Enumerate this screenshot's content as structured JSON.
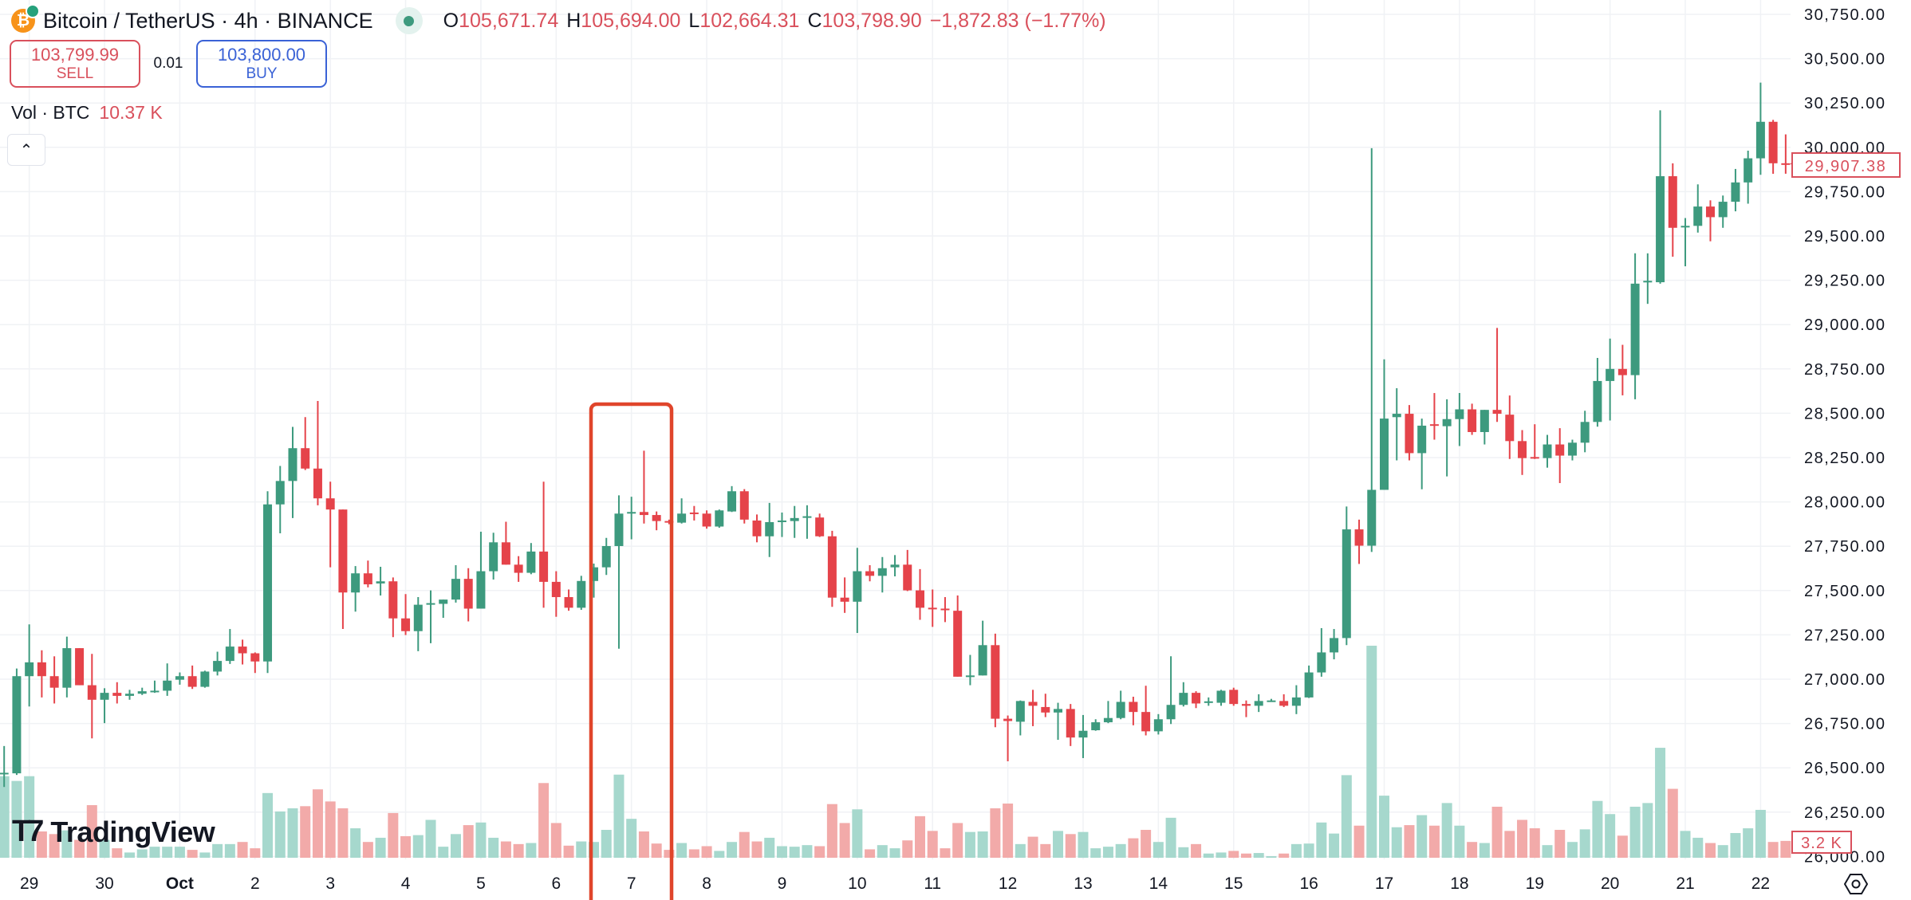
{
  "header": {
    "symbol_title": "Bitcoin / TetherUS · 4h · BINANCE",
    "icon": "bitcoin-icon",
    "status": "market-open-dot",
    "ohlc": {
      "o_label": "O",
      "o_value": "105,671.74",
      "h_label": "H",
      "h_value": "105,694.00",
      "l_label": "L",
      "l_value": "102,664.31",
      "c_label": "C",
      "c_value": "103,798.90",
      "change": "−1,872.83 (−1.77%)"
    }
  },
  "trade": {
    "sell_price": "103,799.99",
    "sell_label": "SELL",
    "quantity": "0.01",
    "buy_price": "103,800.00",
    "buy_label": "BUY"
  },
  "volume_legend": {
    "label": "Vol · BTC",
    "value": "10.37 K"
  },
  "collapse_icon": "chevron-up-icon",
  "logo_text": "TradingView",
  "colors": {
    "up": "#3d9a7e",
    "down": "#e5434a",
    "vol_up": "#a6d8cd",
    "vol_down": "#f2aaa9",
    "highlight": "#e0452b",
    "last_price": "#d9505c"
  },
  "chart_data": {
    "type": "candlestick",
    "interval": "4h",
    "ylim": [
      26000,
      30750
    ],
    "grid": true,
    "y_ticks": [
      "30,750.00",
      "30,500.00",
      "30,250.00",
      "30,000.00",
      "29,750.00",
      "29,500.00",
      "29,250.00",
      "29,000.00",
      "28,750.00",
      "28,500.00",
      "28,250.00",
      "28,000.00",
      "27,750.00",
      "27,500.00",
      "27,250.00",
      "27,000.00",
      "26,750.00",
      "26,500.00",
      "26,250.00",
      "26,000.00"
    ],
    "y_tick_values": [
      30750,
      30500,
      30250,
      30000,
      29750,
      29500,
      29250,
      29000,
      28750,
      28500,
      28250,
      28000,
      27750,
      27500,
      27250,
      27000,
      26750,
      26500,
      26250,
      26000
    ],
    "x_ticks": [
      {
        "label": "29",
        "bar": 2
      },
      {
        "label": "30",
        "bar": 8
      },
      {
        "label": "Oct",
        "bar": 14
      },
      {
        "label": "2",
        "bar": 20
      },
      {
        "label": "3",
        "bar": 26
      },
      {
        "label": "4",
        "bar": 32
      },
      {
        "label": "5",
        "bar": 38
      },
      {
        "label": "6",
        "bar": 44
      },
      {
        "label": "7",
        "bar": 50
      },
      {
        "label": "8",
        "bar": 56
      },
      {
        "label": "9",
        "bar": 62
      },
      {
        "label": "10",
        "bar": 68
      },
      {
        "label": "11",
        "bar": 74
      },
      {
        "label": "12",
        "bar": 80
      },
      {
        "label": "13",
        "bar": 86
      },
      {
        "label": "14",
        "bar": 92
      },
      {
        "label": "15",
        "bar": 98
      },
      {
        "label": "16",
        "bar": 104
      },
      {
        "label": "17",
        "bar": 110
      },
      {
        "label": "18",
        "bar": 116
      },
      {
        "label": "19",
        "bar": 122
      },
      {
        "label": "20",
        "bar": 128
      },
      {
        "label": "21",
        "bar": 134
      },
      {
        "label": "22",
        "bar": 140
      }
    ],
    "highlighted_period": "7",
    "last_price_label": "29,907.38",
    "last_volume_label": "3.2 K",
    "ohlc_fields": [
      "open",
      "high",
      "low",
      "close"
    ],
    "candles": [
      [
        26466,
        26623,
        26392,
        26472
      ],
      [
        26469,
        27060,
        26460,
        27017
      ],
      [
        27017,
        27309,
        26846,
        27095
      ],
      [
        27095,
        27163,
        26897,
        27017
      ],
      [
        27017,
        27129,
        26863,
        26952
      ],
      [
        26952,
        27240,
        26897,
        27175
      ],
      [
        27175,
        27175,
        26966,
        26966
      ],
      [
        26966,
        27143,
        26666,
        26884
      ],
      [
        26884,
        26949,
        26752,
        26923
      ],
      [
        26923,
        26983,
        26863,
        26906
      ],
      [
        26906,
        26940,
        26884,
        26918
      ],
      [
        26918,
        26952,
        26911,
        26932
      ],
      [
        26932,
        26992,
        26923,
        26935
      ],
      [
        26935,
        27089,
        26906,
        26992
      ],
      [
        26997,
        27038,
        26969,
        27017
      ],
      [
        27017,
        27077,
        26945,
        26957
      ],
      [
        26957,
        27048,
        26952,
        27043
      ],
      [
        27043,
        27155,
        27021,
        27103
      ],
      [
        27103,
        27283,
        27086,
        27184
      ],
      [
        27184,
        27223,
        27083,
        27146
      ],
      [
        27146,
        27151,
        27035,
        27100
      ],
      [
        27100,
        28060,
        27035,
        27986
      ],
      [
        27986,
        28203,
        27823,
        28118
      ],
      [
        28118,
        28423,
        27909,
        28303
      ],
      [
        28303,
        28478,
        28180,
        28188
      ],
      [
        28188,
        28569,
        27981,
        28020
      ],
      [
        28020,
        28114,
        27631,
        27957
      ],
      [
        27957,
        27957,
        27283,
        27489
      ],
      [
        27489,
        27638,
        27381,
        27597
      ],
      [
        27597,
        27669,
        27518,
        27535
      ],
      [
        27540,
        27634,
        27472,
        27552
      ],
      [
        27552,
        27574,
        27237,
        27343
      ],
      [
        27343,
        27480,
        27249,
        27271
      ],
      [
        27271,
        27463,
        27158,
        27420
      ],
      [
        27425,
        27501,
        27203,
        27429
      ],
      [
        27425,
        27449,
        27346,
        27449
      ],
      [
        27449,
        27643,
        27432,
        27566
      ],
      [
        27566,
        27626,
        27326,
        27398
      ],
      [
        27398,
        27832,
        27398,
        27609
      ],
      [
        27609,
        27826,
        27562,
        27772
      ],
      [
        27772,
        27888,
        27646,
        27646
      ],
      [
        27646,
        27694,
        27549,
        27600
      ],
      [
        27600,
        27768,
        27592,
        27720
      ],
      [
        27720,
        28114,
        27403,
        27549
      ],
      [
        27549,
        27609,
        27352,
        27463
      ],
      [
        27463,
        27506,
        27386,
        27403
      ],
      [
        27403,
        27583,
        27391,
        27554
      ],
      [
        27554,
        27652,
        27460,
        27631
      ],
      [
        27631,
        27797,
        27588,
        27751
      ],
      [
        27751,
        28037,
        27172,
        27934
      ],
      [
        27938,
        28029,
        27789,
        27943
      ],
      [
        27943,
        28289,
        27878,
        27926
      ],
      [
        27926,
        27946,
        27840,
        27892
      ],
      [
        27892,
        27900,
        27874,
        27886
      ],
      [
        27883,
        28020,
        27878,
        27934
      ],
      [
        27940,
        27977,
        27895,
        27934
      ],
      [
        27934,
        27952,
        27849,
        27861
      ],
      [
        27861,
        27957,
        27854,
        27952
      ],
      [
        27946,
        28089,
        27943,
        28060
      ],
      [
        28060,
        28072,
        27878,
        27900
      ],
      [
        27895,
        27929,
        27772,
        27806
      ],
      [
        27806,
        27994,
        27689,
        27886
      ],
      [
        27888,
        27940,
        27802,
        27895
      ],
      [
        27892,
        27977,
        27797,
        27909
      ],
      [
        27916,
        27981,
        27792,
        27919
      ],
      [
        27912,
        27934,
        27802,
        27806
      ],
      [
        27806,
        27837,
        27408,
        27460
      ],
      [
        27460,
        27574,
        27374,
        27437
      ],
      [
        27437,
        27741,
        27261,
        27609
      ],
      [
        27609,
        27643,
        27552,
        27583
      ],
      [
        27583,
        27689,
        27489,
        27626
      ],
      [
        27631,
        27700,
        27580,
        27646
      ],
      [
        27646,
        27729,
        27497,
        27501
      ],
      [
        27501,
        27621,
        27335,
        27403
      ],
      [
        27403,
        27506,
        27295,
        27398
      ],
      [
        27398,
        27463,
        27322,
        27395
      ],
      [
        27386,
        27472,
        27014,
        27014
      ],
      [
        27017,
        27137,
        26966,
        27021
      ],
      [
        27021,
        27330,
        27021,
        27192
      ],
      [
        27192,
        27257,
        26729,
        26777
      ],
      [
        26777,
        26795,
        26537,
        26764
      ],
      [
        26760,
        26880,
        26683,
        26877
      ],
      [
        26872,
        26940,
        26735,
        26850
      ],
      [
        26843,
        26918,
        26786,
        26812
      ],
      [
        26812,
        26867,
        26658,
        26832
      ],
      [
        26832,
        26860,
        26623,
        26671
      ],
      [
        26671,
        26798,
        26555,
        26709
      ],
      [
        26712,
        26774,
        26709,
        26757
      ],
      [
        26757,
        26877,
        26752,
        26781
      ],
      [
        26781,
        26935,
        26774,
        26872
      ],
      [
        26872,
        26901,
        26740,
        26815
      ],
      [
        26815,
        26963,
        26683,
        26706
      ],
      [
        26706,
        26803,
        26688,
        26774
      ],
      [
        26774,
        27129,
        26747,
        26855
      ],
      [
        26855,
        26983,
        26846,
        26923
      ],
      [
        26923,
        26932,
        26837,
        26863
      ],
      [
        26872,
        26897,
        26850,
        26875
      ],
      [
        26867,
        26940,
        26850,
        26935
      ],
      [
        26940,
        26952,
        26850,
        26860
      ],
      [
        26860,
        26880,
        26786,
        26850
      ],
      [
        26850,
        26915,
        26815,
        26877
      ],
      [
        26877,
        26889,
        26872,
        26880
      ],
      [
        26877,
        26915,
        26843,
        26850
      ],
      [
        26850,
        26966,
        26803,
        26897
      ],
      [
        26897,
        27077,
        26894,
        27038
      ],
      [
        27038,
        27288,
        27014,
        27151
      ],
      [
        27151,
        27283,
        27112,
        27232
      ],
      [
        27232,
        27974,
        27192,
        27845
      ],
      [
        27845,
        27900,
        27650,
        27753
      ],
      [
        27753,
        29995,
        27718,
        28068
      ],
      [
        28068,
        28804,
        28068,
        28470
      ],
      [
        28478,
        28641,
        28234,
        28497
      ],
      [
        28497,
        28546,
        28234,
        28275
      ],
      [
        28275,
        28470,
        28071,
        28430
      ],
      [
        28438,
        28614,
        28351,
        28432
      ],
      [
        28427,
        28579,
        28144,
        28467
      ],
      [
        28467,
        28614,
        28315,
        28522
      ],
      [
        28522,
        28554,
        28378,
        28394
      ],
      [
        28394,
        28519,
        28324,
        28519
      ],
      [
        28519,
        28981,
        28451,
        28497
      ],
      [
        28492,
        28600,
        28242,
        28343
      ],
      [
        28343,
        28405,
        28152,
        28247
      ],
      [
        28253,
        28438,
        28242,
        28247
      ],
      [
        28247,
        28378,
        28193,
        28324
      ],
      [
        28324,
        28416,
        28106,
        28261
      ],
      [
        28261,
        28351,
        28234,
        28334
      ],
      [
        28334,
        28514,
        28280,
        28451
      ],
      [
        28451,
        28812,
        28424,
        28682
      ],
      [
        28682,
        28921,
        28459,
        28750
      ],
      [
        28750,
        28886,
        28601,
        28715
      ],
      [
        28715,
        29402,
        28579,
        29231
      ],
      [
        29242,
        29402,
        29117,
        29247
      ],
      [
        29239,
        30209,
        29231,
        29837
      ],
      [
        29837,
        29910,
        29383,
        29546
      ],
      [
        29552,
        29601,
        29329,
        29557
      ],
      [
        29557,
        29791,
        29519,
        29666
      ],
      [
        29666,
        29701,
        29470,
        29606
      ],
      [
        29606,
        29728,
        29546,
        29693
      ],
      [
        29693,
        29878,
        29639,
        29802
      ],
      [
        29802,
        29981,
        29682,
        29938
      ],
      [
        29938,
        30365,
        29845,
        30144
      ],
      [
        30144,
        30155,
        29851,
        29910
      ],
      [
        29910,
        30073,
        29851,
        29907.38
      ]
    ],
    "volume_unit": "K BTC",
    "volumes": [
      15.5,
      14.6,
      15.5,
      5,
      4.5,
      5.2,
      3.4,
      10,
      3.4,
      1.8,
      1,
      1.6,
      2.1,
      2.1,
      2.1,
      1.5,
      1,
      2.6,
      2.6,
      3,
      1.8,
      12.3,
      8.8,
      9.4,
      9.8,
      13,
      10.7,
      9.4,
      5.6,
      3,
      3.8,
      8.5,
      4.1,
      4.3,
      7.2,
      2.1,
      4.5,
      6.2,
      6.7,
      3.8,
      3.1,
      2.6,
      2.8,
      14.2,
      6.6,
      2.3,
      3.1,
      3,
      5.3,
      15.8,
      7.4,
      5,
      2.7,
      1.5,
      2.8,
      1.6,
      2.2,
      1.3,
      3,
      4.9,
      3.1,
      3.8,
      2.2,
      2.1,
      2.4,
      2.2,
      10.2,
      6.6,
      9.2,
      1.6,
      2.4,
      1.8,
      3.3,
      7.9,
      5.1,
      1.8,
      6.6,
      4.9,
      5,
      9.4,
      10.3,
      2.6,
      4,
      2.6,
      5.1,
      4.5,
      4.9,
      1.8,
      2.1,
      2.6,
      3.7,
      5.3,
      3,
      7.6,
      2,
      2.6,
      0.8,
      1,
      1.3,
      0.8,
      0.9,
      0.3,
      0.8,
      2.6,
      2.7,
      6.7,
      4.6,
      15.7,
      6.1,
      40.3,
      11.8,
      5.8,
      6.2,
      8.1,
      6.1,
      10.4,
      6.1,
      3,
      2.8,
      9.7,
      5.1,
      7.2,
      5.6,
      2.4,
      5.3,
      3,
      5.4,
      10.8,
      8.3,
      4.2,
      9.7,
      10.4,
      20.9,
      13.1,
      5.1,
      3.8,
      2.8,
      2.4,
      4.7,
      5.6,
      9.1,
      3,
      3.2
    ]
  },
  "settings_icon": "chart-settings-icon"
}
